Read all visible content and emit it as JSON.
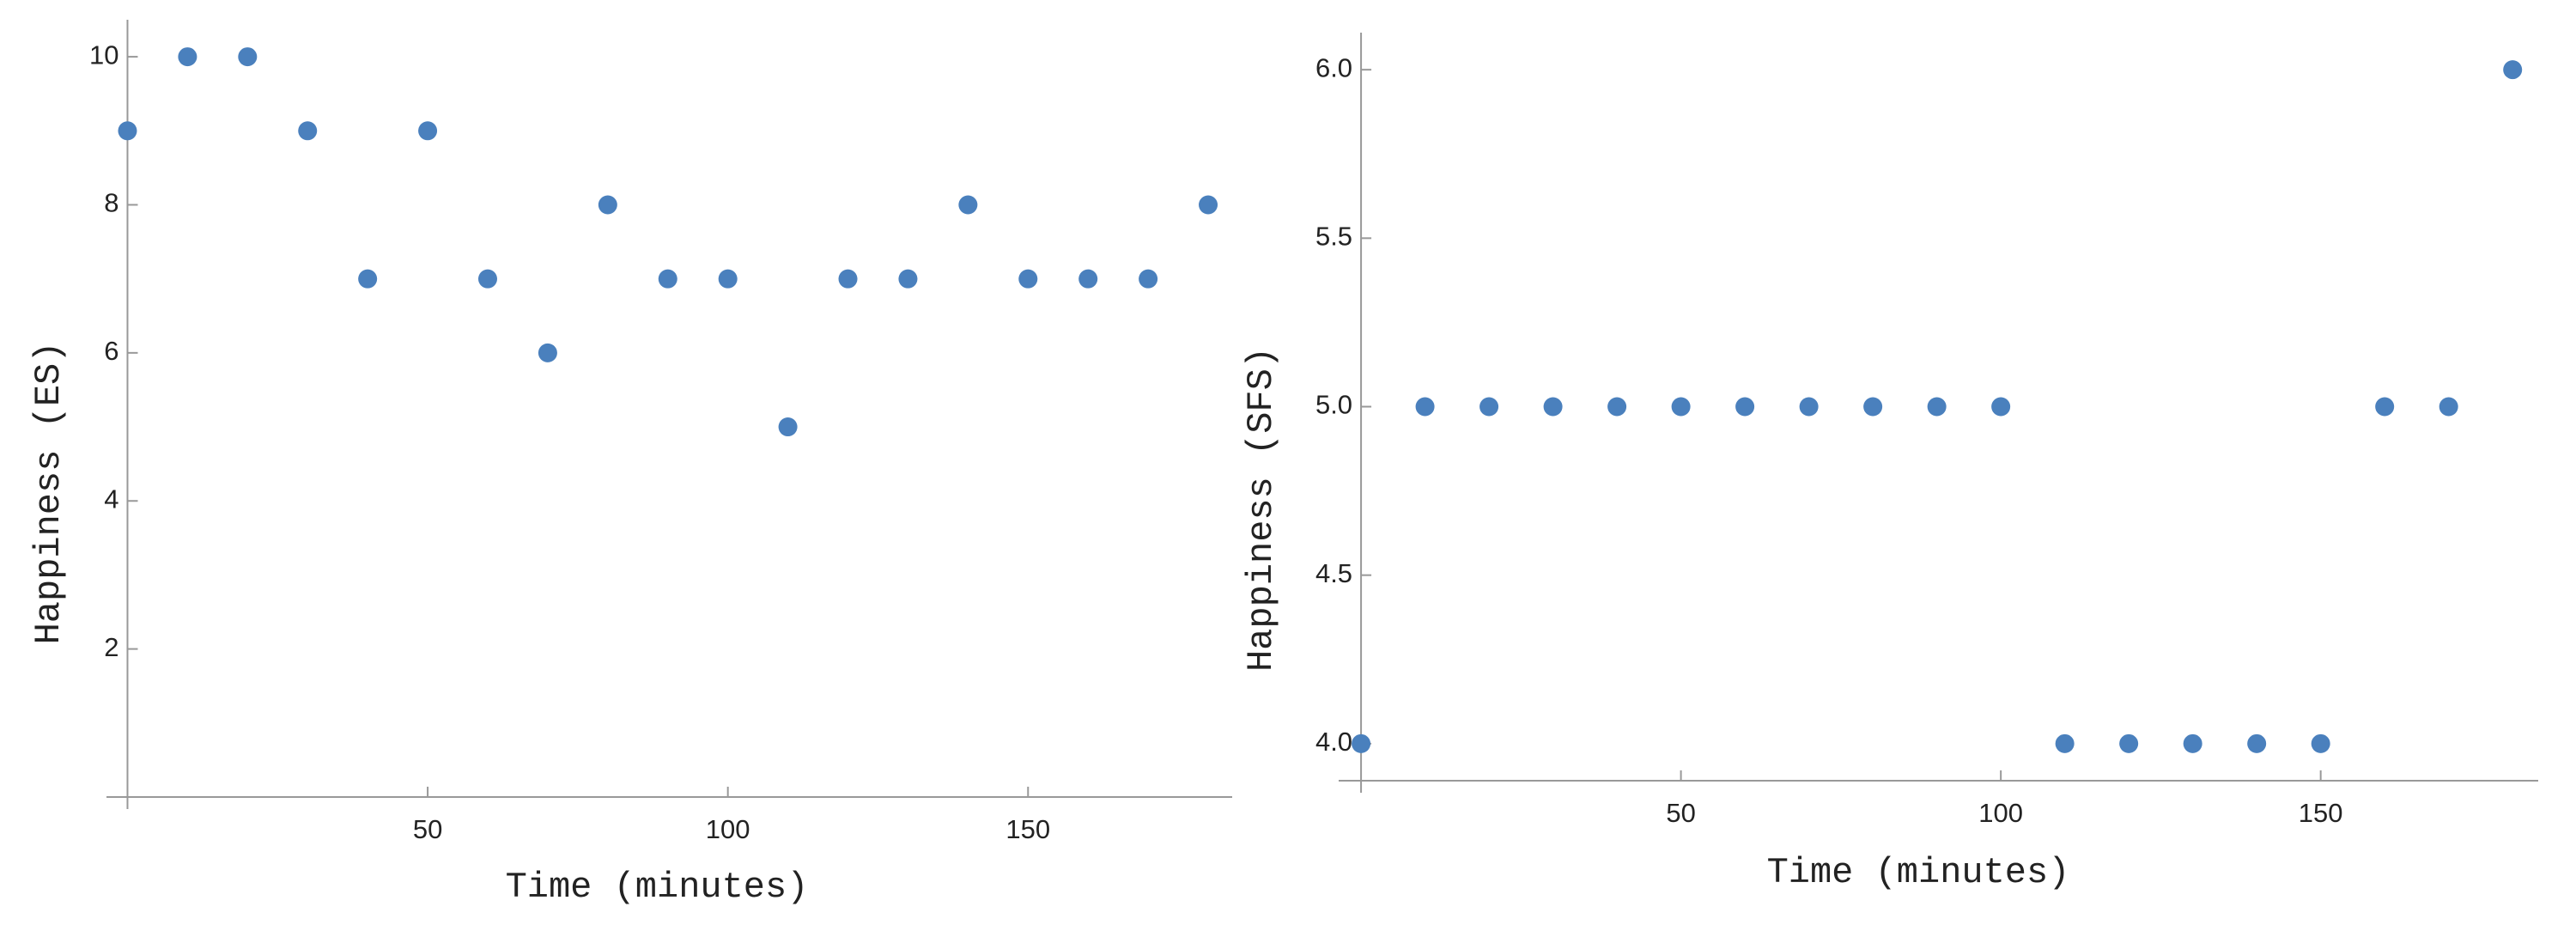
{
  "chart_data": [
    {
      "type": "scatter",
      "x_label": "Time (minutes)",
      "y_label": "Happiness (ES)",
      "x": [
        0,
        10,
        20,
        30,
        40,
        50,
        60,
        70,
        80,
        90,
        100,
        110,
        120,
        130,
        140,
        150,
        160,
        170,
        180
      ],
      "values": [
        9,
        10,
        10,
        9,
        7,
        9,
        7,
        6,
        8,
        7,
        7,
        5,
        7,
        7,
        8,
        7,
        7,
        7,
        8
      ],
      "color": "#4a80bd",
      "xlim": [
        -3.5,
        184
      ],
      "ylim": [
        0,
        10.5
      ],
      "xticks": [
        50,
        100,
        150
      ],
      "yticks": [
        2,
        4,
        6,
        8,
        10
      ]
    },
    {
      "type": "scatter",
      "x_label": "Time (minutes)",
      "y_label": "Happiness (SFS)",
      "x": [
        0,
        10,
        20,
        30,
        40,
        50,
        60,
        70,
        80,
        90,
        100,
        110,
        120,
        130,
        140,
        150,
        160,
        170,
        180
      ],
      "values": [
        4,
        5,
        5,
        5,
        5,
        5,
        5,
        5,
        5,
        5,
        5,
        4,
        4,
        4,
        4,
        4,
        5,
        5,
        6
      ],
      "color": "#4a80bd",
      "xlim": [
        -3.5,
        184
      ],
      "ylim": [
        3.89,
        6.11
      ],
      "xticks": [
        50,
        100,
        150
      ],
      "yticks": [
        {
          "value": 4,
          "label": "4.0"
        },
        4.5,
        {
          "value": 5,
          "label": "5.0"
        },
        5.5,
        {
          "value": 6,
          "label": "6.0"
        }
      ]
    }
  ]
}
